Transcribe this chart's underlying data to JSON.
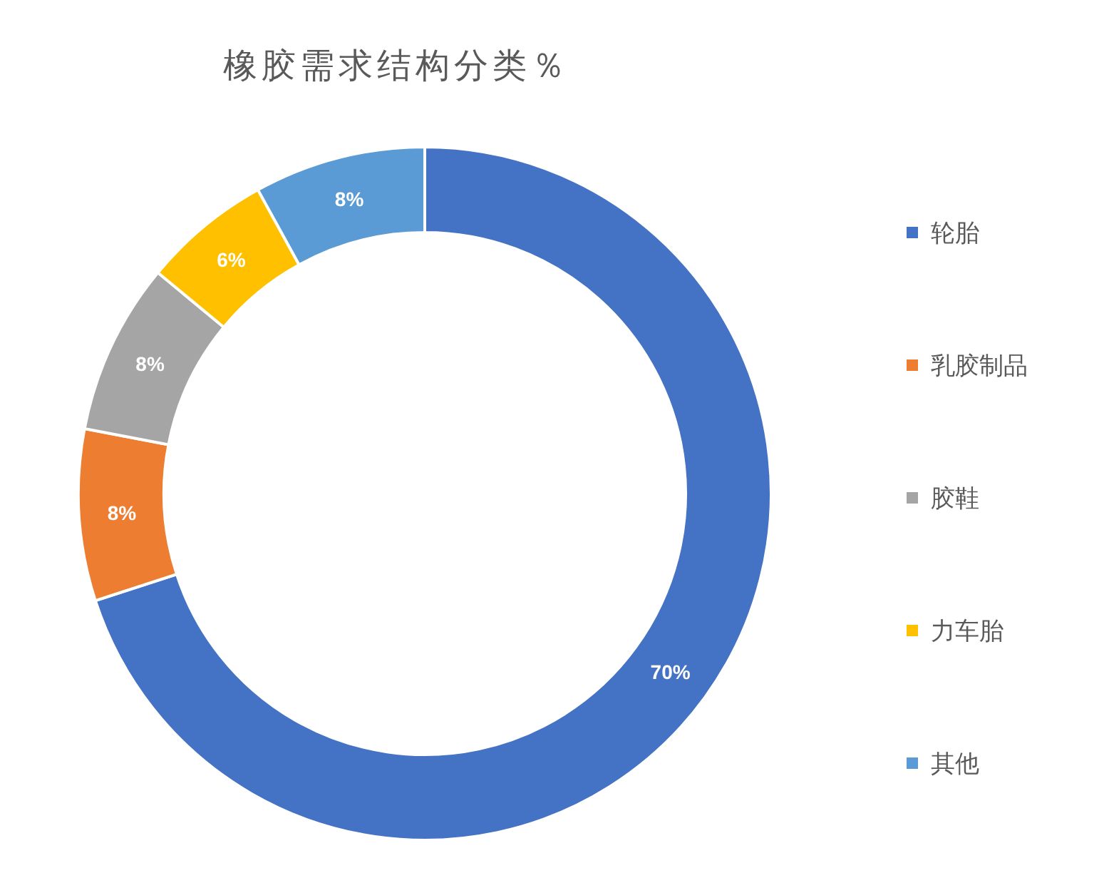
{
  "chart_data": {
    "type": "donut",
    "title": "橡胶需求结构分类％",
    "categories": [
      "轮胎",
      "乳胶制品",
      "胶鞋",
      "力车胎",
      "其他"
    ],
    "values": [
      70,
      8,
      8,
      6,
      8
    ],
    "colors": [
      "#4472c4",
      "#ed7d31",
      "#a5a5a5",
      "#ffc000",
      "#5b9bd5"
    ],
    "value_labels": [
      "70%",
      "8%",
      "8%",
      "6%",
      "8%"
    ],
    "legend": "right"
  }
}
